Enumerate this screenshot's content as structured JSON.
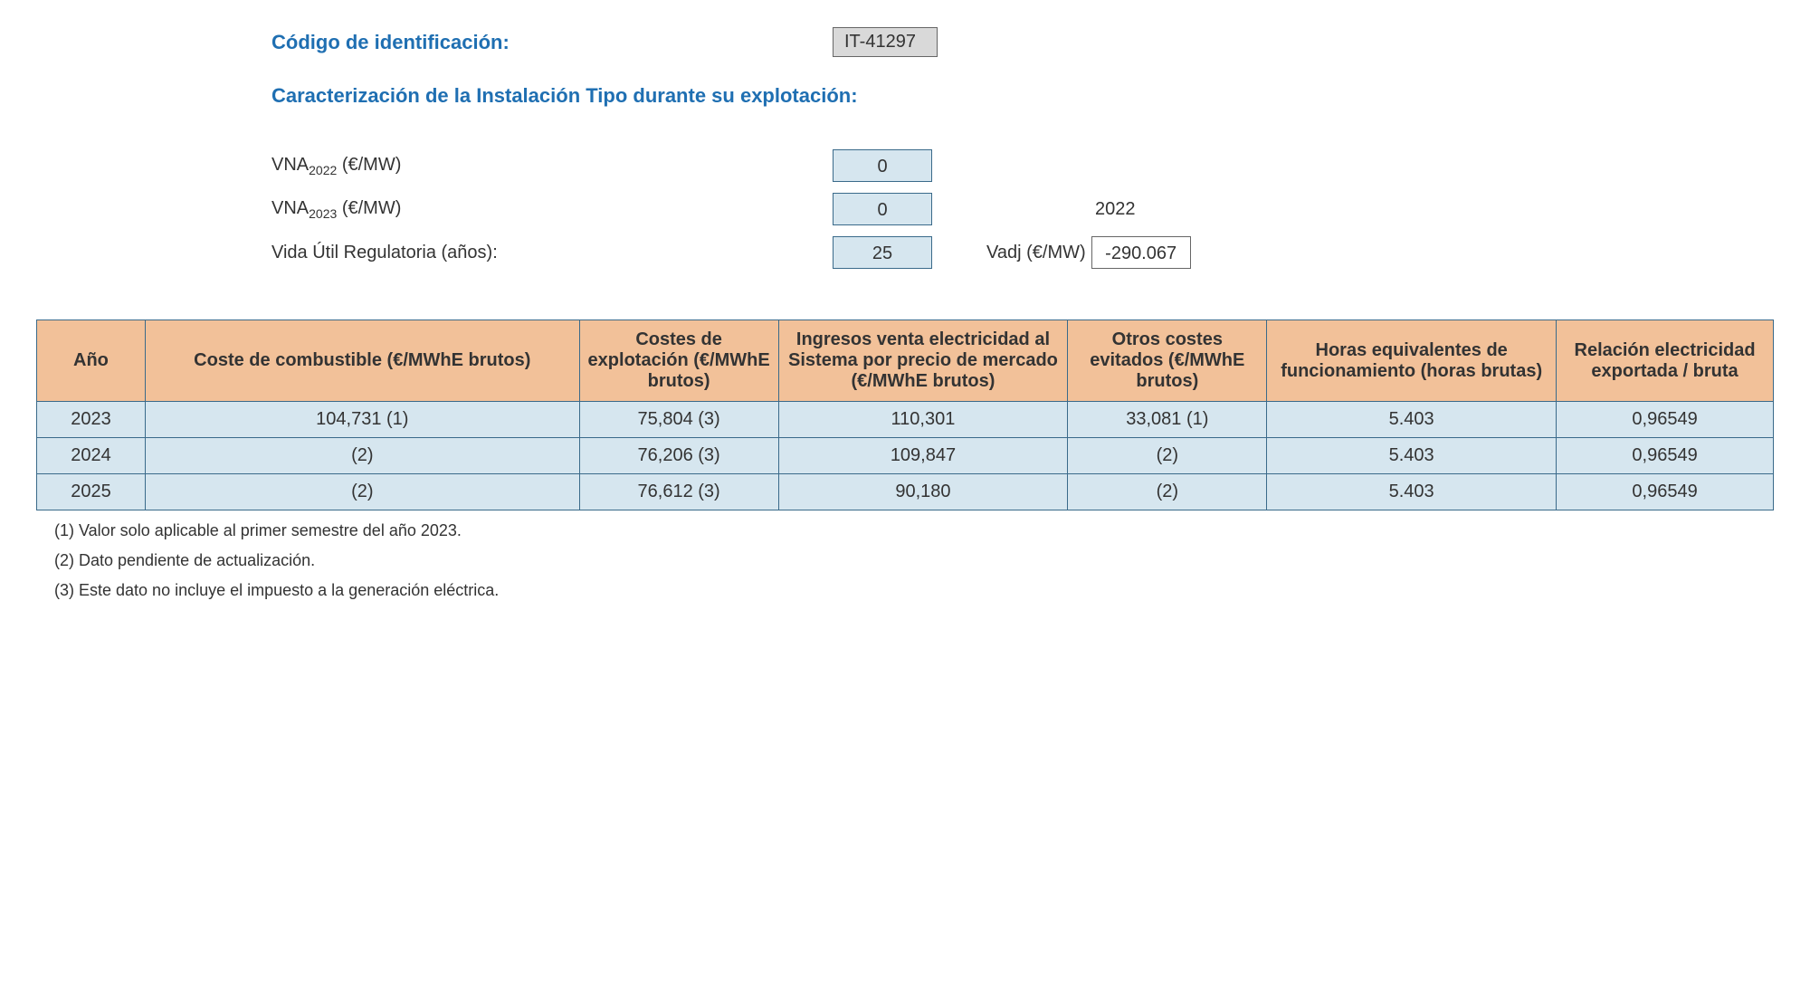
{
  "header": {
    "code_label": "Código de identificación:",
    "code_value": "IT-41297",
    "subheading": "Caracterización de la Instalación Tipo durante su explotación:"
  },
  "params": {
    "vna2022_label_pre": "VNA",
    "vna2022_sub": "2022",
    "vna2022_label_post": " (€/MW)",
    "vna2022_value": "0",
    "vna2023_label_pre": "VNA",
    "vna2023_sub": "2023",
    "vna2023_label_post": " (€/MW)",
    "vna2023_value": "0",
    "side_year": "2022",
    "vida_label": "Vida Útil Regulatoria (años):",
    "vida_value": "25",
    "vadj_label": "Vadj (€/MW)",
    "vadj_value": "-290.067"
  },
  "table": {
    "columns": [
      "Año",
      "Coste de combustible (€/MWhE brutos)",
      "Costes de explotación (€/MWhE brutos)",
      "Ingresos venta electricidad al Sistema por precio de mercado (€/MWhE brutos)",
      "Otros costes evitados (€/MWhE brutos)",
      "Horas equivalentes de funcionamiento (horas brutas)",
      "Relación electricidad exportada / bruta"
    ],
    "rows": [
      [
        "2023",
        "104,731 (1)",
        "75,804 (3)",
        "110,301",
        "33,081 (1)",
        "5.403",
        "0,96549"
      ],
      [
        "2024",
        "(2)",
        "76,206 (3)",
        "109,847",
        "(2)",
        "5.403",
        "0,96549"
      ],
      [
        "2025",
        "(2)",
        "76,612 (3)",
        "90,180",
        "(2)",
        "5.403",
        "0,96549"
      ]
    ],
    "header_bg": "#f2c199",
    "cell_bg": "#d6e6ef",
    "border_color": "#3a6a8a"
  },
  "footnotes": [
    "(1) Valor solo aplicable al primer semestre del año 2023.",
    "(2) Dato pendiente de actualización.",
    "(3) Este dato no incluye el impuesto a la generación eléctrica."
  ]
}
